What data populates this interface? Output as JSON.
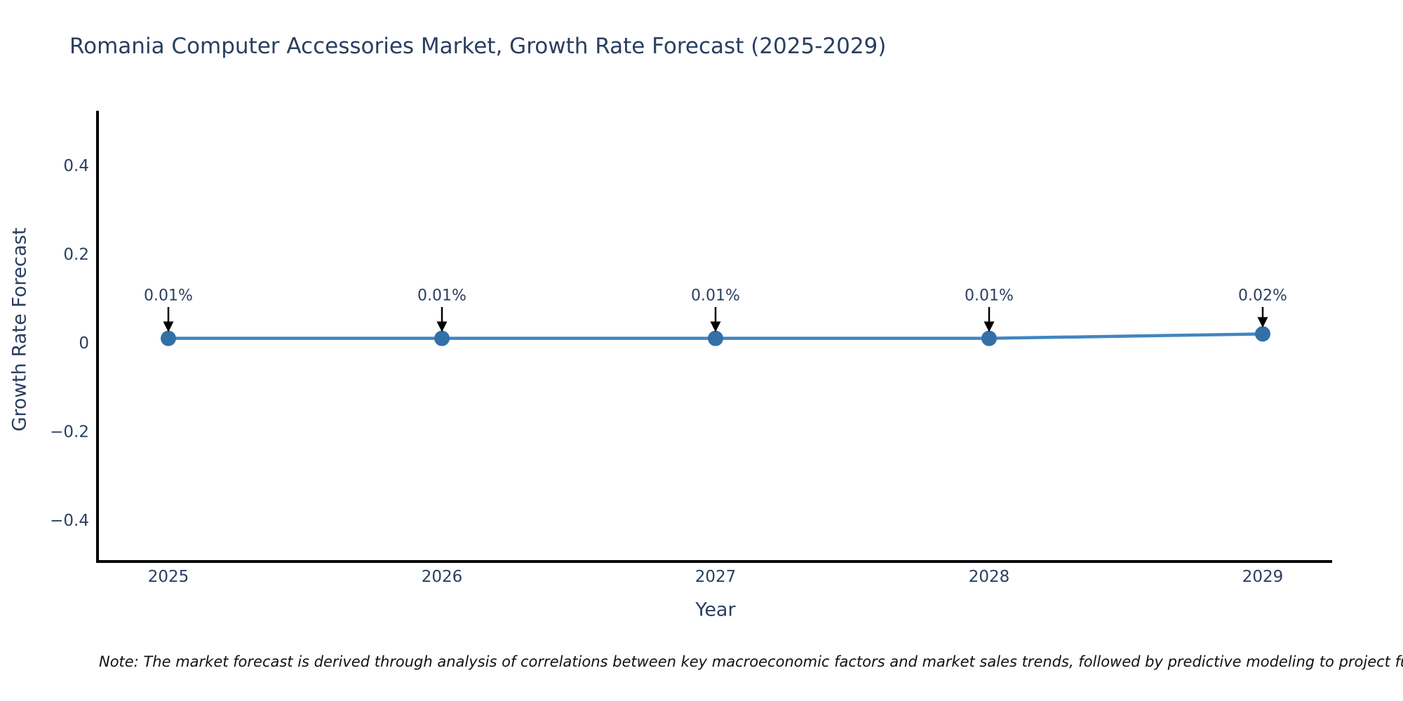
{
  "note": "Note: The market forecast is derived through analysis of correlations between key macroeconomic factors and market sales trends, followed by predictive modeling to project future sal",
  "chart_data": {
    "type": "line",
    "title": "Romania Computer Accessories Market, Growth Rate Forecast (2025-2029)",
    "xlabel": "Year",
    "ylabel": "Growth Rate Forecast",
    "x": [
      2025,
      2026,
      2027,
      2028,
      2029
    ],
    "series": [
      {
        "name": "Growth Rate Forecast",
        "values": [
          0.01,
          0.01,
          0.01,
          0.01,
          0.02
        ]
      }
    ],
    "point_labels": [
      "0.01%",
      "0.01%",
      "0.01%",
      "0.01%",
      "0.02%"
    ],
    "yticks": [
      0.4,
      0.2,
      0,
      -0.2,
      -0.4
    ],
    "ylim": [
      -0.49,
      0.52
    ],
    "grid": false,
    "legend_position": "none",
    "colors": {
      "line": "#4285c2",
      "marker": "#3470a8",
      "axis_line": "#000000",
      "text": "#2a3f5f",
      "annotation_arrow": "#000000",
      "background": "#ffffff"
    }
  }
}
